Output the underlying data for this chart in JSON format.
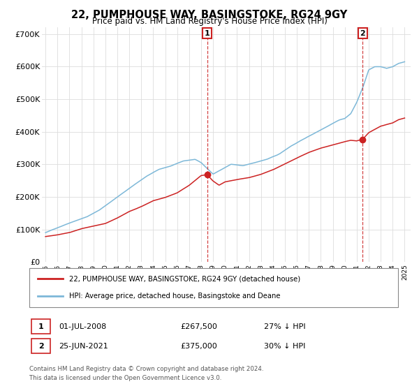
{
  "title": "22, PUMPHOUSE WAY, BASINGSTOKE, RG24 9GY",
  "subtitle": "Price paid vs. HM Land Registry's House Price Index (HPI)",
  "ylim": [
    0,
    720000
  ],
  "yticks": [
    0,
    100000,
    200000,
    300000,
    400000,
    500000,
    600000,
    700000
  ],
  "hpi_color": "#7db8d8",
  "price_color": "#cc2222",
  "marker1_x": 2008.5,
  "marker1_price_y": 267500,
  "marker1_label": "1",
  "marker1_date": "01-JUL-2008",
  "marker1_price": "£267,500",
  "marker1_hpi": "27% ↓ HPI",
  "marker2_x": 2021.5,
  "marker2_price_y": 375000,
  "marker2_label": "2",
  "marker2_date": "25-JUN-2021",
  "marker2_price": "£375,000",
  "marker2_hpi": "30% ↓ HPI",
  "legend_line1": "22, PUMPHOUSE WAY, BASINGSTOKE, RG24 9GY (detached house)",
  "legend_line2": "HPI: Average price, detached house, Basingstoke and Deane",
  "footnote1": "Contains HM Land Registry data © Crown copyright and database right 2024.",
  "footnote2": "This data is licensed under the Open Government Licence v3.0.",
  "background_color": "#ffffff",
  "grid_color": "#dddddd",
  "xlim_left": 1994.7,
  "xlim_right": 2025.5
}
